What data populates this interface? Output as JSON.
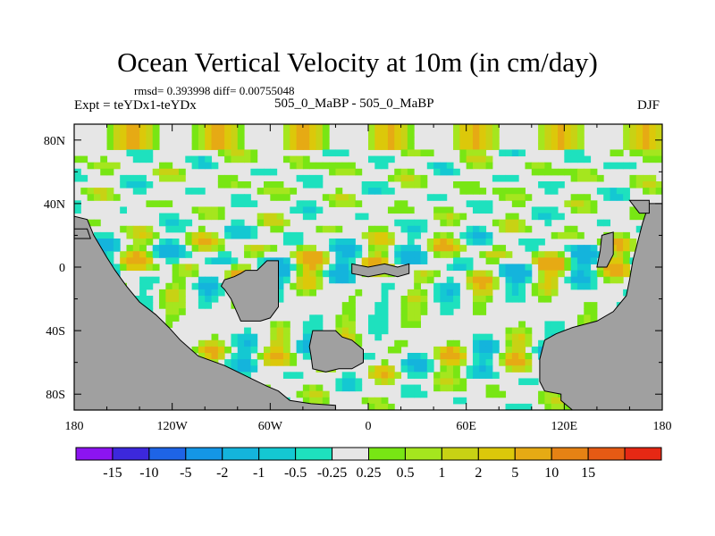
{
  "chart_data": {
    "type": "heatmap",
    "title": "Ocean Vertical Velocity at 10m (in cm/day)",
    "stats_text": "rmsd= 0.393998 diff= 0.00755048",
    "left_label": "Expt = teYDx1-teYDx",
    "subtitle": "505_0_MaBP - 505_0_MaBP",
    "season": "DJF",
    "x_range": [
      -180,
      180
    ],
    "y_range": [
      -90,
      90
    ],
    "x_ticks": [
      {
        "value": -180,
        "label": "180"
      },
      {
        "value": -120,
        "label": "120W"
      },
      {
        "value": -60,
        "label": "60W"
      },
      {
        "value": 0,
        "label": "0"
      },
      {
        "value": 60,
        "label": "60E"
      },
      {
        "value": 120,
        "label": "120E"
      },
      {
        "value": 180,
        "label": "180"
      }
    ],
    "y_ticks": [
      {
        "value": 80,
        "label": "80N"
      },
      {
        "value": 40,
        "label": "40N"
      },
      {
        "value": 0,
        "label": "0"
      },
      {
        "value": -40,
        "label": "40S"
      },
      {
        "value": -80,
        "label": "80S"
      }
    ],
    "colorbar": {
      "colors": [
        "#8c14f0",
        "#3c28dc",
        "#1e64e6",
        "#1496e6",
        "#14b4dc",
        "#14c8d2",
        "#1ee1be",
        "#e6e6e6",
        "#78e614",
        "#a5e61e",
        "#c8d214",
        "#dcc80a",
        "#e6aa14",
        "#e68214",
        "#e65a14",
        "#e62814"
      ],
      "labels": [
        "-15",
        "-10",
        "-5",
        "-2",
        "-1",
        "-0.5",
        "-0.25",
        "0.25",
        "0.5",
        "1",
        "2",
        "5",
        "10",
        "15"
      ]
    },
    "land_color": "#a0a0a0"
  }
}
